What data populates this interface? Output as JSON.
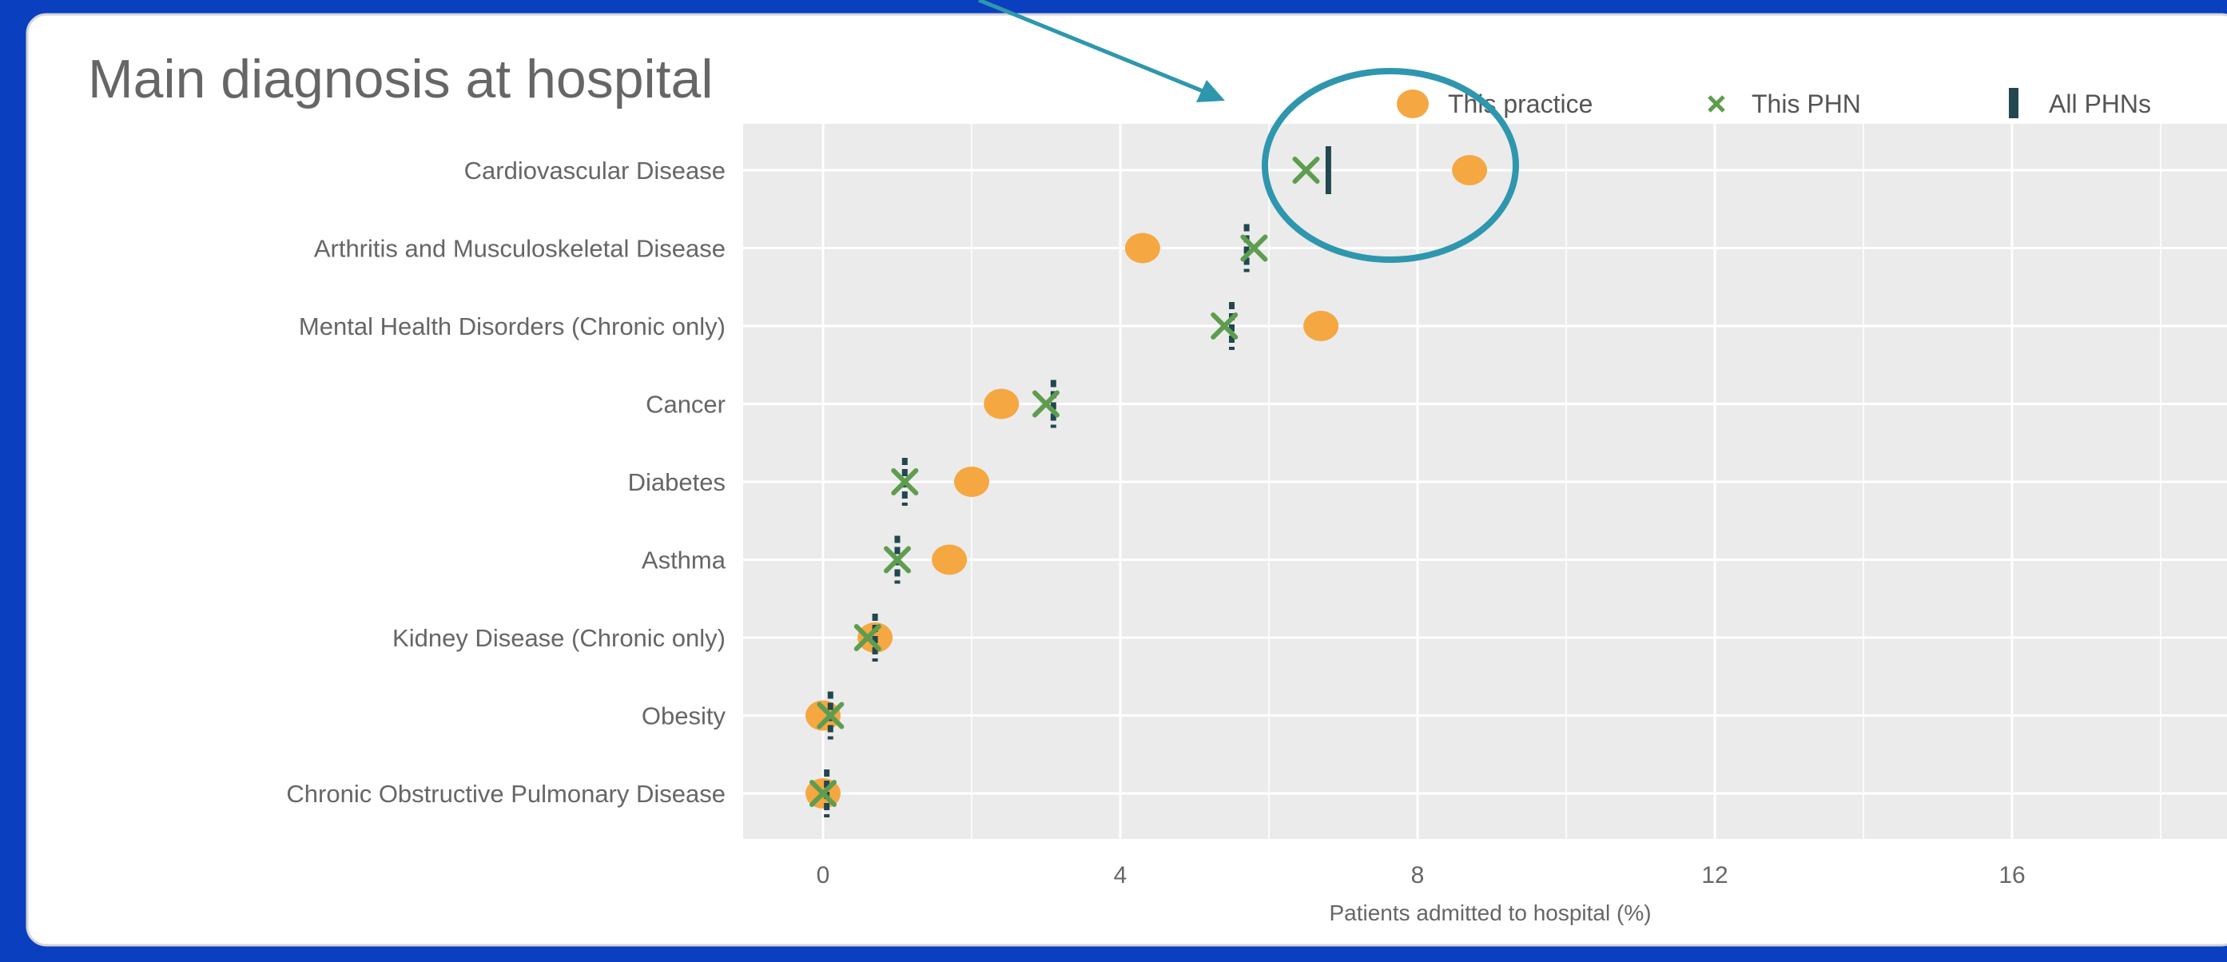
{
  "colors": {
    "frame_blue": "#0a3fbf",
    "card_bg": "#ffffff",
    "plot_bg": "#ebebeb",
    "grid": "#ffffff",
    "practice": "#f5a742",
    "phn": "#5e9d4f",
    "all_phns": "#22474f",
    "annotation": "#2e97ae",
    "text": "#666666"
  },
  "chart_data": {
    "type": "scatter",
    "title": "Main diagnosis at hospital",
    "xlabel": "Patients admitted to hospital (%)",
    "ylabel": "",
    "xlim": [
      -1.2,
      19
    ],
    "xticks": [
      0,
      4,
      8,
      12,
      16
    ],
    "xtick_labels": [
      "0",
      "4",
      "8",
      "12",
      "16"
    ],
    "grid": true,
    "legend_position": "top-right",
    "legend": [
      {
        "label": "This practice",
        "marker": "circle",
        "color": "#f5a742"
      },
      {
        "label": "This PHN",
        "marker": "cross",
        "color": "#5e9d4f"
      },
      {
        "label": "All PHNs",
        "marker": "bar",
        "color": "#22474f"
      }
    ],
    "categories": [
      "Cardiovascular Disease",
      "Arthritis and Musculoskeletal Disease",
      "Mental Health Disorders (Chronic only)",
      "Cancer",
      "Diabetes",
      "Asthma",
      "Kidney Disease (Chronic only)",
      "Obesity",
      "Chronic Obstructive Pulmonary Disease"
    ],
    "series": [
      {
        "name": "This practice",
        "marker": "circle",
        "values": [
          8.7,
          4.3,
          6.7,
          2.4,
          2.0,
          1.7,
          0.7,
          0.0,
          0.0
        ]
      },
      {
        "name": "This PHN",
        "marker": "cross",
        "values": [
          6.5,
          5.8,
          5.4,
          3.0,
          1.1,
          1.0,
          0.6,
          0.1,
          0.0
        ]
      },
      {
        "name": "All PHNs",
        "marker": "bar",
        "values": [
          6.8,
          5.7,
          5.5,
          3.1,
          1.1,
          1.0,
          0.7,
          0.1,
          0.05
        ]
      }
    ],
    "annotations": [
      {
        "type": "arrow",
        "target_category": "Cardiovascular Disease",
        "note": "arrow pointing toward highlighted row"
      },
      {
        "type": "circle-highlight",
        "target_category": "Cardiovascular Disease"
      }
    ]
  }
}
